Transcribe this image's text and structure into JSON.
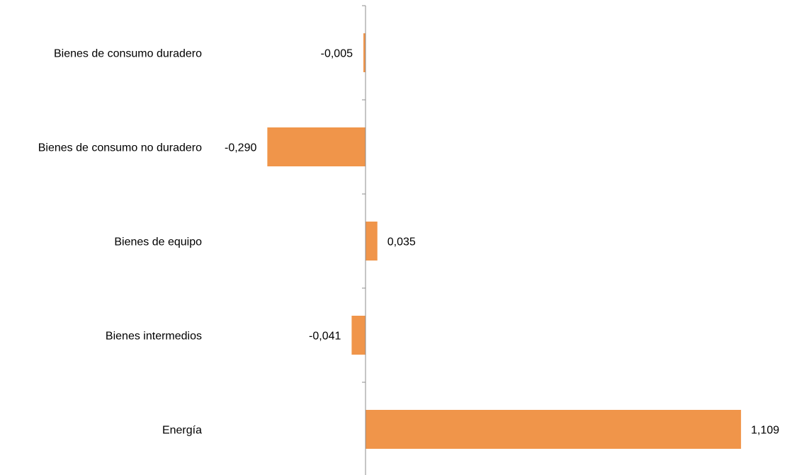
{
  "chart_data": {
    "type": "bar",
    "orientation": "horizontal",
    "categories": [
      "Bienes de consumo duradero",
      "Bienes de consumo no duradero",
      "Bienes de equipo",
      "Bienes intermedios",
      "Energía"
    ],
    "values": [
      -0.005,
      -0.29,
      0.035,
      -0.041,
      1.109
    ],
    "value_labels": [
      "-0,005",
      "-0,290",
      "0,035",
      "-0,041",
      "1,109"
    ],
    "bar_color": "#F0954A",
    "axis_color": "#8c8c8c",
    "grid": false,
    "legend": "none"
  }
}
